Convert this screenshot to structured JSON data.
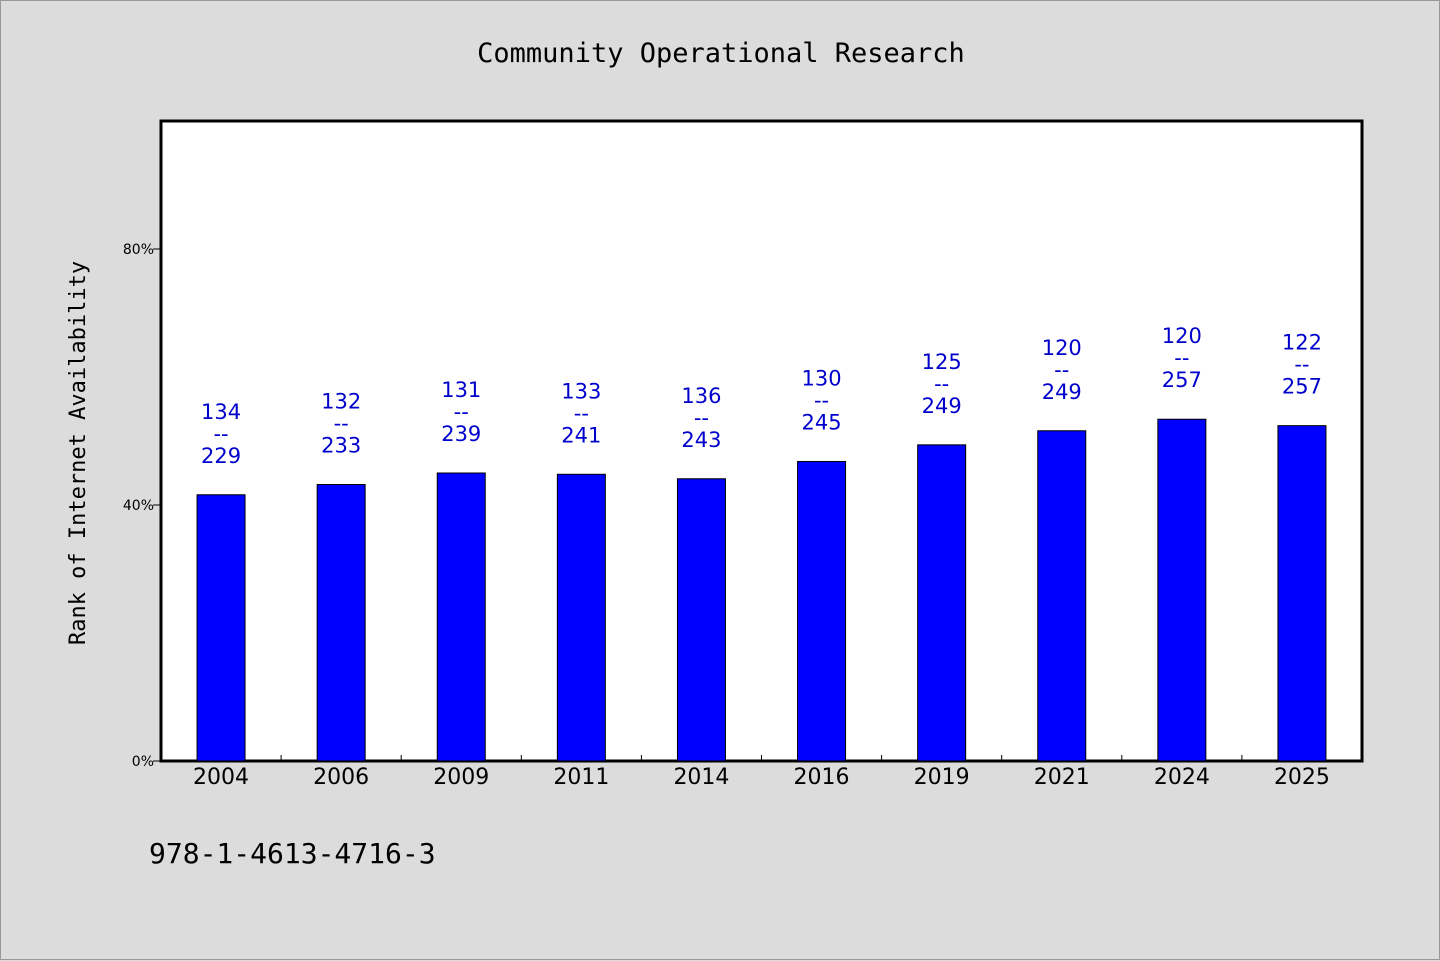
{
  "chart_data": {
    "type": "bar",
    "title": "Community Operational Research",
    "ylabel": "Rank of Internet Availability",
    "xlabel": "",
    "ylim": [
      0,
      100
    ],
    "y_ticks": [
      {
        "value": 0,
        "label": "0%"
      },
      {
        "value": 40,
        "label": "40%"
      },
      {
        "value": 80,
        "label": "80%"
      }
    ],
    "categories": [
      "2004",
      "2006",
      "2009",
      "2011",
      "2014",
      "2016",
      "2019",
      "2021",
      "2024",
      "2025"
    ],
    "values": [
      41.6,
      43.2,
      45.0,
      44.8,
      44.1,
      46.8,
      49.4,
      51.6,
      53.4,
      52.4
    ],
    "bar_labels": [
      {
        "top": "134",
        "sep": "--",
        "bottom": "229"
      },
      {
        "top": "132",
        "sep": "--",
        "bottom": "233"
      },
      {
        "top": "131",
        "sep": "--",
        "bottom": "239"
      },
      {
        "top": "133",
        "sep": "--",
        "bottom": "241"
      },
      {
        "top": "136",
        "sep": "--",
        "bottom": "243"
      },
      {
        "top": "130",
        "sep": "--",
        "bottom": "245"
      },
      {
        "top": "125",
        "sep": "--",
        "bottom": "249"
      },
      {
        "top": "120",
        "sep": "--",
        "bottom": "249"
      },
      {
        "top": "120",
        "sep": "--",
        "bottom": "257"
      },
      {
        "top": "122",
        "sep": "--",
        "bottom": "257"
      }
    ],
    "bar_color": "#0000ff",
    "label_color": "#0000cc",
    "grid": false,
    "legend": "none"
  },
  "footer": {
    "isbn": "978-1-4613-4716-3"
  }
}
